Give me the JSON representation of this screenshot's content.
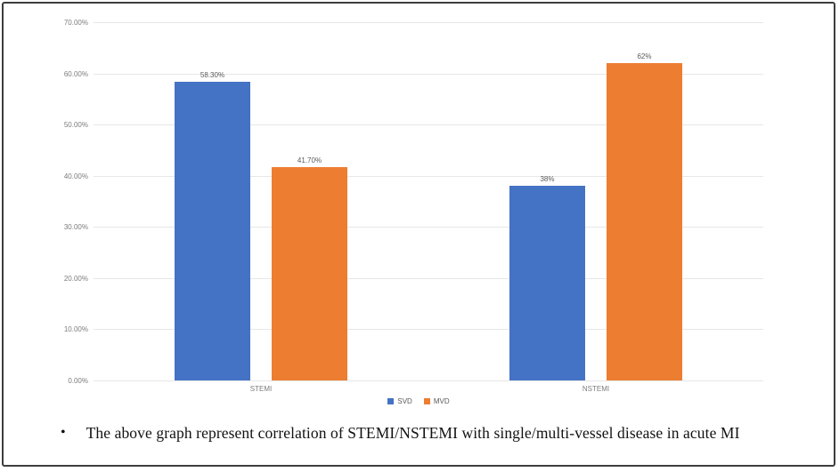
{
  "chart_data": {
    "type": "bar",
    "categories": [
      "STEMI",
      "NSTEMI"
    ],
    "series": [
      {
        "name": "SVD",
        "color": "#4472c4",
        "values": [
          58.3,
          38
        ],
        "labels": [
          "58.30%",
          "38%"
        ]
      },
      {
        "name": "MVD",
        "color": "#ed7d31",
        "values": [
          41.7,
          62
        ],
        "labels": [
          "41.70%",
          "62%"
        ]
      }
    ],
    "title": "",
    "xlabel": "",
    "ylabel": "",
    "ylim": [
      0,
      70
    ],
    "ytick_step": 10,
    "ytick_labels": [
      "0.00%",
      "10.00%",
      "20.00%",
      "30.00%",
      "40.00%",
      "50.00%",
      "60.00%",
      "70.00%"
    ],
    "grid": true,
    "legend_position": "bottom"
  },
  "caption": {
    "bullet": "•",
    "text": "The above graph represent correlation of STEMI/NSTEMI with single/multi-vessel disease in acute MI"
  },
  "colors": {
    "series_svd": "#4472c4",
    "series_mvd": "#ed7d31",
    "gridline": "#e7e7e7",
    "axis_text": "#7c7c7c",
    "data_label_text": "#595959",
    "frame_border": "#3d3d3d",
    "background": "#ffffff"
  }
}
